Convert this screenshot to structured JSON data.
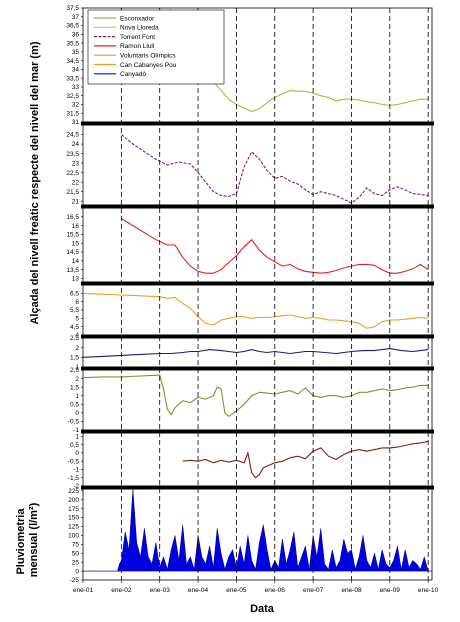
{
  "chart_data": {
    "type": "line",
    "y_label_top": "Alçada del nivell freàtic respecte del nivell del mar (m)",
    "y_label_bottom": "Pluviometria mensual (l/m²)",
    "x_label": "Data",
    "x_ticks": [
      "ene-01",
      "ene-02",
      "ene-03",
      "ene-04",
      "ene-05",
      "ene-06",
      "ene-07",
      "ene-08",
      "ene-09",
      "ene-10"
    ],
    "legend": [
      {
        "name": "Esconxador",
        "color": "#a8b44a",
        "dash": "solid"
      },
      {
        "name": "Nova Lloreda",
        "color": "#b8c878",
        "dash": "solid"
      },
      {
        "name": "Torrent Font",
        "color": "#7a1f7a",
        "dash": "dashed"
      },
      {
        "name": "Ramon Llull",
        "color": "#e02020",
        "dash": "solid"
      },
      {
        "name": "Voluntaris Olímpics",
        "color": "#9ac436",
        "dash": "solid"
      },
      {
        "name": "Can Cabanyes Pou",
        "color": "#e8a020",
        "dash": "solid"
      },
      {
        "name": "Canyadó",
        "color": "#1a1a80",
        "dash": "solid"
      }
    ],
    "panels": [
      {
        "series": "Voluntaris Olímpics",
        "color": "#9ac436",
        "dash": "solid",
        "ylim": [
          31,
          37.5
        ],
        "yticks": [
          "37,5",
          "37",
          "36,5",
          "36",
          "35,5",
          "35",
          "34,5",
          "34",
          "33,5",
          "33",
          "32,5",
          "32",
          "31,5",
          "31"
        ],
        "x": [
          3.25,
          3.4,
          3.6,
          3.8,
          4.0,
          4.2,
          4.4,
          4.6,
          4.8,
          5.0,
          5.2,
          5.4,
          5.6,
          5.8,
          6.0,
          6.2,
          6.4,
          6.6,
          6.8,
          7.0,
          7.2,
          7.4,
          7.6,
          7.8,
          8.0,
          8.2,
          8.4,
          8.6,
          8.8,
          9.0,
          9.2,
          9.4,
          9.6,
          9.8,
          10.0
        ],
        "y": [
          37.5,
          36.9,
          36.2,
          35.5,
          34.7,
          34.0,
          33.3,
          32.8,
          32.3,
          32.0,
          31.8,
          31.6,
          31.75,
          32.1,
          32.4,
          32.6,
          32.8,
          32.75,
          32.75,
          32.65,
          32.5,
          32.4,
          32.2,
          32.3,
          32.3,
          32.25,
          32.15,
          32.1,
          32.0,
          31.95,
          32.0,
          32.1,
          32.2,
          32.3,
          32.3
        ]
      },
      {
        "series": "Torrent Font",
        "color": "#7a1f7a",
        "dash": "dashed",
        "ylim": [
          20.8,
          25
        ],
        "yticks": [
          "24,5",
          "24",
          "23,5",
          "23",
          "22,5",
          "22",
          "21,5",
          "21"
        ],
        "x": [
          2.0,
          2.3,
          2.6,
          2.9,
          3.2,
          3.5,
          3.8,
          4.0,
          4.2,
          4.4,
          4.6,
          4.8,
          5.0,
          5.2,
          5.4,
          5.6,
          5.8,
          6.0,
          6.2,
          6.4,
          6.6,
          6.8,
          7.0,
          7.2,
          7.4,
          7.6,
          7.8,
          8.0,
          8.2,
          8.4,
          8.6,
          8.8,
          9.0,
          9.2,
          9.4,
          9.6,
          9.8,
          10.0
        ],
        "y": [
          24.5,
          24.0,
          23.6,
          23.2,
          22.9,
          23.05,
          22.95,
          22.5,
          22.0,
          21.5,
          21.3,
          21.25,
          21.4,
          22.8,
          23.6,
          23.2,
          22.6,
          22.2,
          22.3,
          22.05,
          21.9,
          21.6,
          21.35,
          21.5,
          21.4,
          21.3,
          21.1,
          20.9,
          21.2,
          21.7,
          21.4,
          21.3,
          21.6,
          21.75,
          21.6,
          21.4,
          21.35,
          21.3
        ]
      },
      {
        "series": "Ramon Llull",
        "color": "#e02020",
        "dash": "solid",
        "ylim": [
          12.8,
          17
        ],
        "yticks": [
          "16,5",
          "16",
          "15,5",
          "15",
          "14,5",
          "14",
          "13,5",
          "13"
        ],
        "x": [
          2.0,
          2.3,
          2.6,
          2.9,
          3.2,
          3.4,
          3.6,
          3.8,
          4.0,
          4.2,
          4.4,
          4.6,
          4.8,
          5.0,
          5.2,
          5.4,
          5.6,
          5.8,
          6.0,
          6.2,
          6.4,
          6.6,
          6.8,
          7.0,
          7.2,
          7.4,
          7.6,
          7.8,
          8.0,
          8.2,
          8.4,
          8.6,
          8.8,
          9.0,
          9.2,
          9.4,
          9.6,
          9.8,
          10.0
        ],
        "y": [
          16.4,
          16.0,
          15.6,
          15.2,
          14.9,
          14.9,
          14.2,
          13.7,
          13.4,
          13.3,
          13.3,
          13.5,
          13.9,
          14.3,
          14.8,
          15.2,
          14.6,
          14.2,
          13.95,
          13.7,
          13.8,
          13.55,
          13.4,
          13.35,
          13.3,
          13.35,
          13.45,
          13.6,
          13.7,
          13.8,
          13.8,
          13.75,
          13.5,
          13.3,
          13.3,
          13.4,
          13.55,
          13.8,
          13.5
        ]
      },
      {
        "series": "Can Cabanyes Pou",
        "color": "#e8a020",
        "dash": "solid",
        "ylim": [
          4.0,
          7.0
        ],
        "yticks": [
          "6,5",
          "6",
          "5,5",
          "5",
          "4,5",
          "4"
        ],
        "x": [
          1.0,
          1.5,
          2.0,
          2.5,
          3.0,
          3.2,
          3.4,
          3.6,
          3.8,
          4.0,
          4.2,
          4.4,
          4.6,
          4.8,
          5.0,
          5.2,
          5.4,
          5.6,
          5.8,
          6.0,
          6.2,
          6.4,
          6.6,
          6.8,
          7.0,
          7.2,
          7.4,
          7.6,
          7.8,
          8.0,
          8.2,
          8.4,
          8.6,
          8.8,
          9.0,
          9.2,
          9.4,
          9.6,
          9.8,
          10.0
        ],
        "y": [
          6.5,
          6.45,
          6.4,
          6.35,
          6.3,
          6.2,
          6.25,
          5.9,
          5.6,
          5.1,
          4.7,
          4.6,
          4.9,
          5.0,
          5.1,
          5.1,
          5.0,
          5.05,
          5.05,
          5.1,
          5.15,
          5.2,
          5.1,
          5.0,
          5.05,
          5.0,
          4.9,
          4.9,
          4.85,
          4.8,
          4.7,
          4.4,
          4.5,
          4.8,
          4.9,
          4.9,
          4.95,
          5.0,
          5.05,
          5.0
        ]
      },
      {
        "series": "Canyadó",
        "color": "#1a1a80",
        "dash": "solid",
        "ylim": [
          1.0,
          2.5
        ],
        "yticks": [
          "2,5",
          "2",
          "1,5",
          "1"
        ],
        "x": [
          1.0,
          1.5,
          2.0,
          2.5,
          3.0,
          3.3,
          3.6,
          3.8,
          4.0,
          4.3,
          4.6,
          4.8,
          5.0,
          5.2,
          5.4,
          5.6,
          5.8,
          6.0,
          6.2,
          6.4,
          6.6,
          6.8,
          7.0,
          7.3,
          7.6,
          7.8,
          8.0,
          8.3,
          8.6,
          8.8,
          9.0,
          9.3,
          9.6,
          9.8,
          10.0
        ],
        "y": [
          1.5,
          1.55,
          1.6,
          1.65,
          1.7,
          1.7,
          1.75,
          1.8,
          1.8,
          1.9,
          1.85,
          1.8,
          1.75,
          1.8,
          1.9,
          1.8,
          1.75,
          1.8,
          1.75,
          1.7,
          1.75,
          1.8,
          1.8,
          1.75,
          1.7,
          1.75,
          1.8,
          1.85,
          1.85,
          1.9,
          1.95,
          1.85,
          1.8,
          1.85,
          1.9
        ]
      },
      {
        "series": "Nova Lloreda",
        "color": "#8a8a30",
        "dash": "solid",
        "ylim": [
          -1.0,
          2.5
        ],
        "yticks": [
          "2,5",
          "2",
          "1,5",
          "1",
          "0,5",
          "0",
          "-0,5",
          "-1"
        ],
        "x": [
          1.0,
          1.5,
          2.0,
          2.5,
          3.0,
          3.1,
          3.2,
          3.3,
          3.4,
          3.6,
          3.8,
          4.0,
          4.2,
          4.4,
          4.5,
          4.6,
          4.7,
          4.8,
          5.0,
          5.2,
          5.4,
          5.6,
          5.8,
          6.0,
          6.2,
          6.4,
          6.6,
          6.8,
          7.0,
          7.2,
          7.4,
          7.6,
          7.8,
          8.0,
          8.2,
          8.4,
          8.6,
          8.8,
          9.0,
          9.2,
          9.4,
          9.6,
          9.8,
          10.0
        ],
        "y": [
          2.05,
          2.1,
          2.1,
          2.15,
          2.2,
          1.4,
          0.2,
          -0.1,
          0.3,
          0.7,
          0.6,
          0.9,
          0.8,
          1.0,
          1.5,
          1.4,
          0.0,
          -0.2,
          0.1,
          0.5,
          1.0,
          1.2,
          1.15,
          1.1,
          1.2,
          1.3,
          1.1,
          1.45,
          1.0,
          0.9,
          1.0,
          1.0,
          0.9,
          1.0,
          1.2,
          1.2,
          1.3,
          1.4,
          1.3,
          1.35,
          1.45,
          1.5,
          1.6,
          1.6
        ]
      },
      {
        "series": "Esconxador",
        "color": "#8a1a1a",
        "dash": "solid",
        "ylim": [
          -2.0,
          1.2
        ],
        "yticks": [
          "1",
          "0,5",
          "0",
          "-0,5",
          "-1",
          "-1,5",
          "-2"
        ],
        "x": [
          3.6,
          3.8,
          4.0,
          4.2,
          4.4,
          4.6,
          4.8,
          5.0,
          5.2,
          5.3,
          5.4,
          5.5,
          5.6,
          5.7,
          5.8,
          6.0,
          6.2,
          6.4,
          6.6,
          6.8,
          7.0,
          7.2,
          7.4,
          7.6,
          7.8,
          8.0,
          8.2,
          8.4,
          8.6,
          8.8,
          9.0,
          9.2,
          9.4,
          9.6,
          9.8,
          10.0
        ],
        "y": [
          -0.5,
          -0.45,
          -0.5,
          -0.4,
          -0.6,
          -0.45,
          -0.55,
          -0.45,
          -0.6,
          0.0,
          -1.2,
          -1.5,
          -1.3,
          -0.9,
          -0.8,
          -0.6,
          -0.5,
          -0.3,
          -0.2,
          -0.35,
          0.1,
          0.3,
          -0.2,
          -0.4,
          -0.1,
          0.1,
          0.2,
          0.1,
          0.2,
          0.3,
          0.3,
          0.35,
          0.45,
          0.55,
          0.6,
          0.7
        ]
      },
      {
        "series": "Pluviometria",
        "color": "#0000e0",
        "type": "area",
        "ylim": [
          -25,
          230
        ],
        "yticks": [
          "225",
          "200",
          "175",
          "150",
          "125",
          "100",
          "75",
          "50",
          "25",
          "0",
          "-25"
        ],
        "x": [
          1.0,
          1.9,
          1.95,
          2.0,
          2.1,
          2.2,
          2.3,
          2.4,
          2.5,
          2.6,
          2.7,
          2.8,
          2.9,
          3.0,
          3.1,
          3.2,
          3.3,
          3.4,
          3.5,
          3.6,
          3.7,
          3.8,
          3.9,
          4.0,
          4.1,
          4.2,
          4.3,
          4.4,
          4.5,
          4.6,
          4.7,
          4.8,
          4.9,
          5.0,
          5.1,
          5.2,
          5.3,
          5.4,
          5.5,
          5.6,
          5.7,
          5.8,
          5.9,
          6.0,
          6.1,
          6.2,
          6.3,
          6.4,
          6.5,
          6.6,
          6.7,
          6.8,
          6.9,
          7.0,
          7.1,
          7.2,
          7.3,
          7.4,
          7.5,
          7.6,
          7.7,
          7.8,
          7.9,
          8.0,
          8.1,
          8.2,
          8.3,
          8.4,
          8.5,
          8.6,
          8.7,
          8.8,
          8.9,
          9.0,
          9.1,
          9.2,
          9.3,
          9.4,
          9.5,
          9.6,
          9.7,
          9.8,
          9.9,
          10.0,
          10.1
        ],
        "y": [
          0,
          0,
          20,
          30,
          110,
          60,
          230,
          80,
          40,
          120,
          40,
          20,
          80,
          10,
          40,
          5,
          60,
          100,
          30,
          130,
          20,
          40,
          5,
          100,
          40,
          20,
          70,
          10,
          120,
          50,
          5,
          40,
          60,
          10,
          70,
          20,
          100,
          30,
          5,
          80,
          130,
          60,
          5,
          30,
          10,
          90,
          20,
          60,
          110,
          10,
          40,
          70,
          5,
          100,
          40,
          120,
          20,
          5,
          60,
          10,
          30,
          90,
          50,
          60,
          5,
          40,
          100,
          30,
          10,
          50,
          5,
          60,
          20,
          10,
          30,
          70,
          5,
          60,
          10,
          30,
          20,
          5,
          40,
          0,
          0
        ]
      }
    ]
  }
}
